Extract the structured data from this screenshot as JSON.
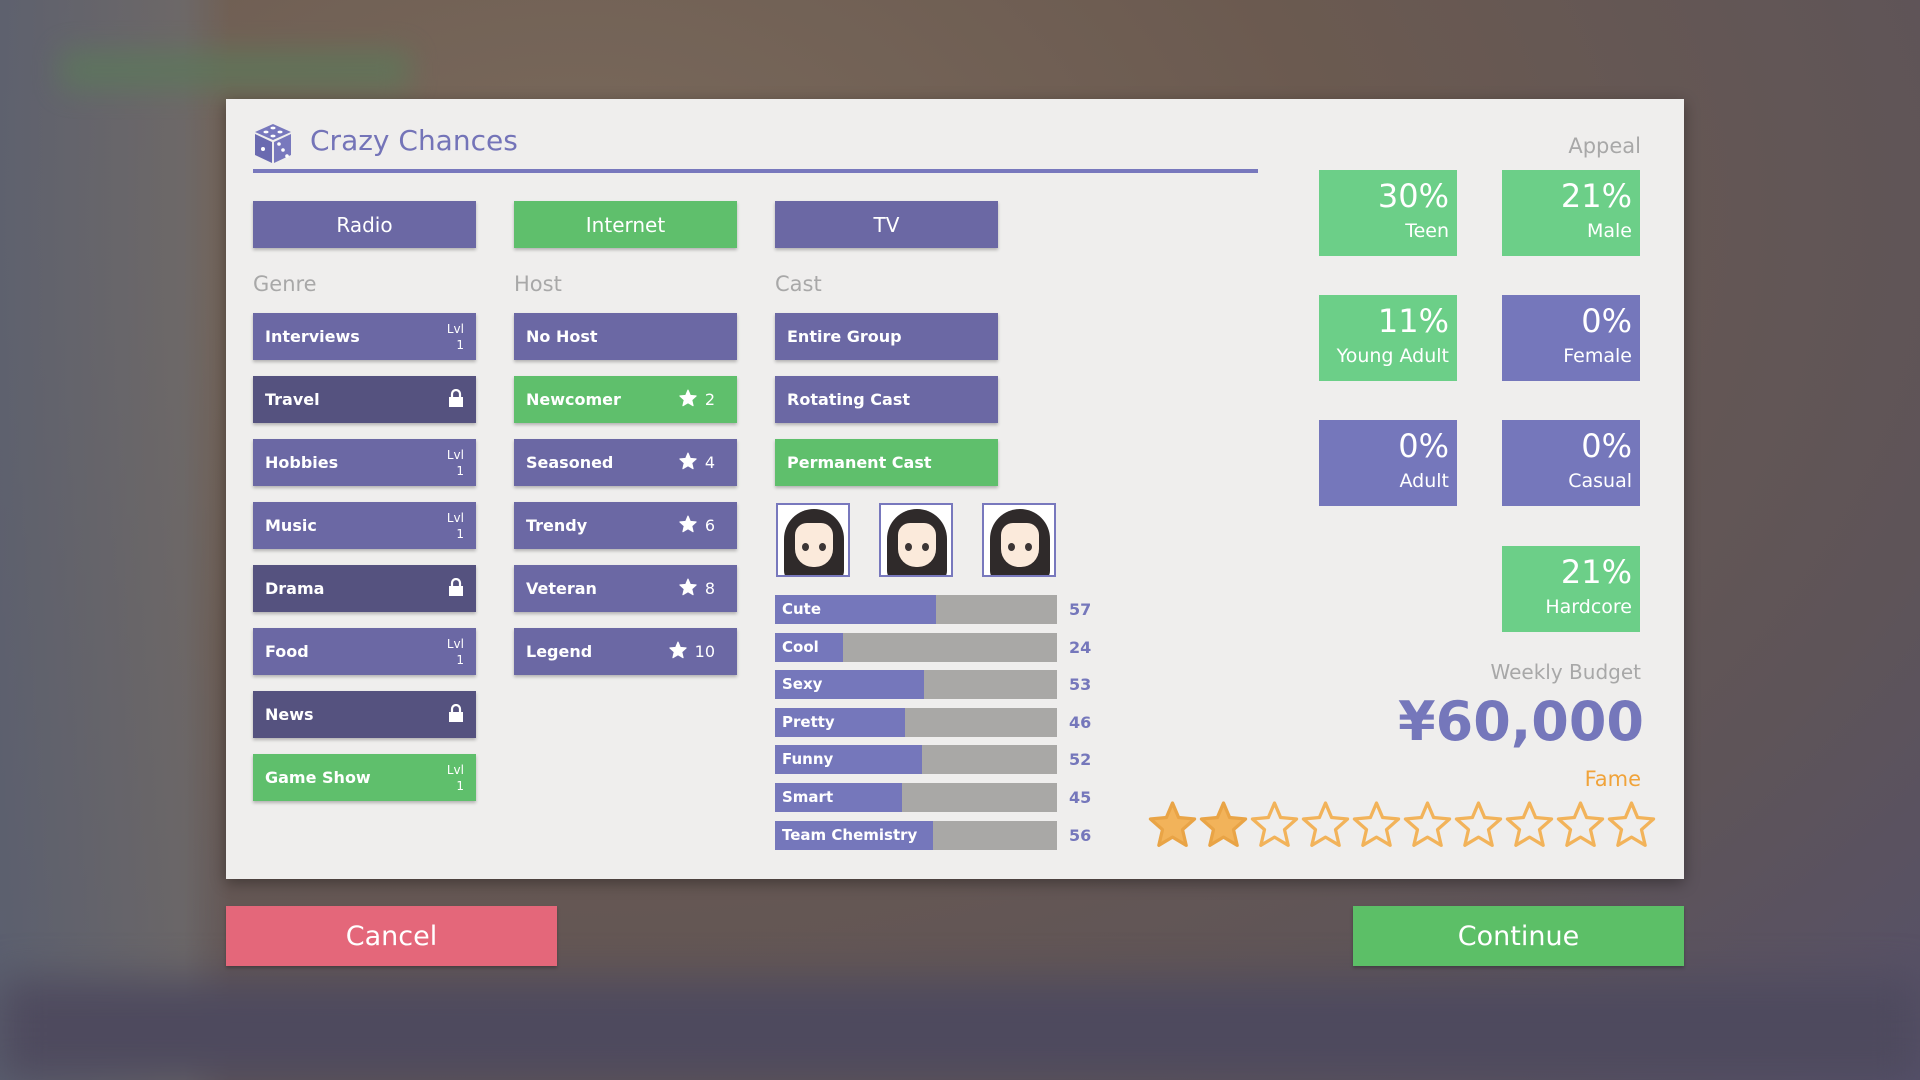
{
  "title": "Crazy Chances",
  "colors": {
    "purple": "#6b68a4",
    "locked": "#55527f",
    "selected_green": "#5fbf6c",
    "appeal_green": "#6ccf88",
    "appeal_purple": "#7577bb",
    "fame": "#f0a33a",
    "cancel": "#e4677a",
    "continue": "#5cbf67"
  },
  "media": [
    {
      "label": "Radio",
      "selected": false
    },
    {
      "label": "Internet",
      "selected": true
    },
    {
      "label": "TV",
      "selected": false
    }
  ],
  "genre": {
    "label": "Genre",
    "items": [
      {
        "label": "Interviews",
        "state": "level",
        "lvl_label": "Lvl",
        "lvl": "1"
      },
      {
        "label": "Travel",
        "state": "locked"
      },
      {
        "label": "Hobbies",
        "state": "level",
        "lvl_label": "Lvl",
        "lvl": "1"
      },
      {
        "label": "Music",
        "state": "level",
        "lvl_label": "Lvl",
        "lvl": "1"
      },
      {
        "label": "Drama",
        "state": "locked"
      },
      {
        "label": "Food",
        "state": "level",
        "lvl_label": "Lvl",
        "lvl": "1"
      },
      {
        "label": "News",
        "state": "locked"
      },
      {
        "label": "Game Show",
        "state": "selected",
        "lvl_label": "Lvl",
        "lvl": "1"
      }
    ]
  },
  "host": {
    "label": "Host",
    "items": [
      {
        "label": "No Host",
        "stars": null,
        "selected": false
      },
      {
        "label": "Newcomer",
        "stars": "2",
        "selected": true
      },
      {
        "label": "Seasoned",
        "stars": "4",
        "selected": false
      },
      {
        "label": "Trendy",
        "stars": "6",
        "selected": false
      },
      {
        "label": "Veteran",
        "stars": "8",
        "selected": false
      },
      {
        "label": "Legend",
        "stars": "10",
        "selected": false
      }
    ]
  },
  "cast": {
    "label": "Cast",
    "items": [
      {
        "label": "Entire Group",
        "selected": false
      },
      {
        "label": "Rotating Cast",
        "selected": false
      },
      {
        "label": "Permanent Cast",
        "selected": true
      }
    ],
    "portraits": 3,
    "stats": [
      {
        "label": "Cute",
        "value": 57
      },
      {
        "label": "Cool",
        "value": 24
      },
      {
        "label": "Sexy",
        "value": 53
      },
      {
        "label": "Pretty",
        "value": 46
      },
      {
        "label": "Funny",
        "value": 52
      },
      {
        "label": "Smart",
        "value": 45
      },
      {
        "label": "Team Chemistry",
        "value": 56
      }
    ],
    "stat_max": 100
  },
  "appeal": {
    "label": "Appeal",
    "tiles": [
      {
        "pct": "30%",
        "name": "Teen",
        "active": true
      },
      {
        "pct": "21%",
        "name": "Male",
        "active": true
      },
      {
        "pct": "11%",
        "name": "Young Adult",
        "active": true
      },
      {
        "pct": "0%",
        "name": "Female",
        "active": false
      },
      {
        "pct": "0%",
        "name": "Adult",
        "active": false
      },
      {
        "pct": "0%",
        "name": "Casual",
        "active": false
      },
      {
        "pct": "21%",
        "name": "Hardcore",
        "active": true
      }
    ]
  },
  "budget": {
    "label": "Weekly Budget",
    "value": "¥60,000"
  },
  "fame": {
    "label": "Fame",
    "stars_filled": 2,
    "stars_total": 10
  },
  "buttons": {
    "cancel": "Cancel",
    "continue": "Continue"
  }
}
